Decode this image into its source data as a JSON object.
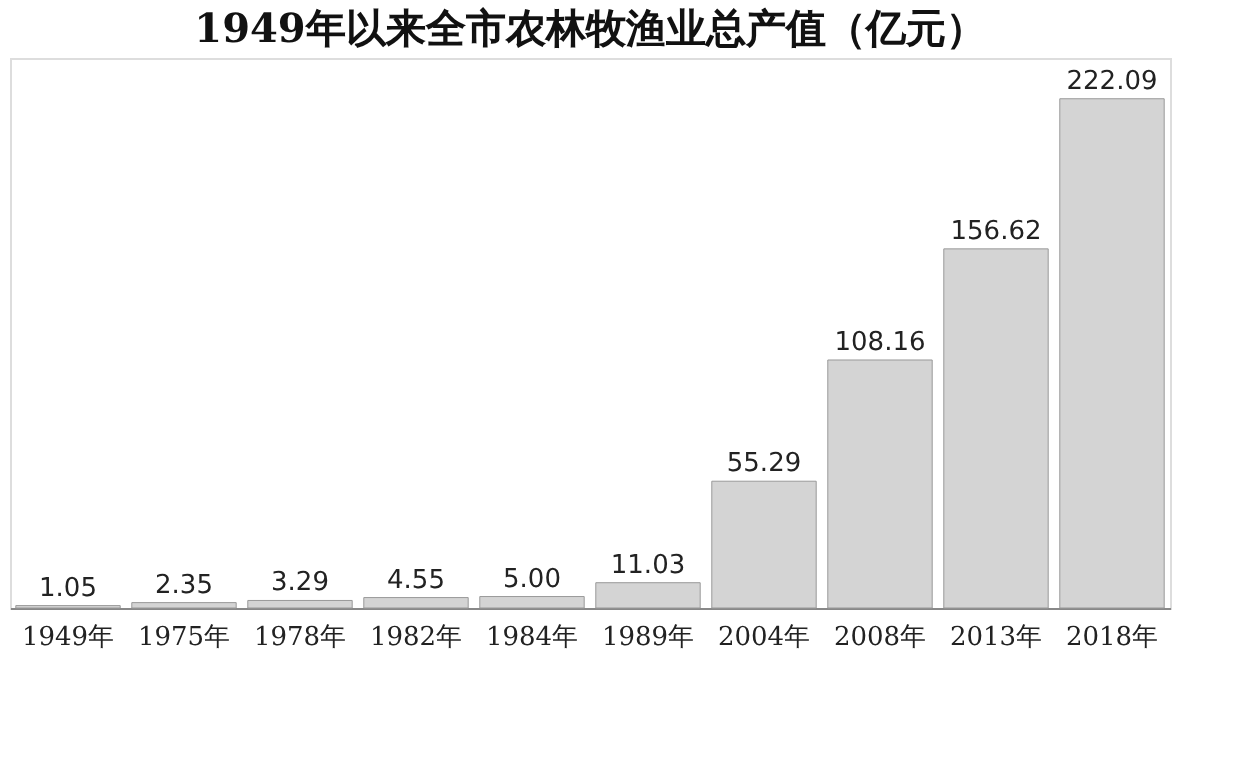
{
  "chart_data": {
    "type": "bar",
    "title": "1949年以来全市农林牧渔业总产值（亿元）",
    "categories": [
      "1949年",
      "1975年",
      "1978年",
      "1982年",
      "1984年",
      "1989年",
      "2004年",
      "2008年",
      "2013年",
      "2018年"
    ],
    "values": [
      1.05,
      2.35,
      3.29,
      4.55,
      5.0,
      11.03,
      55.29,
      108.16,
      156.62,
      222.09
    ],
    "value_labels": [
      "1.05",
      "2.35",
      "3.29",
      "4.55",
      "5.00",
      "11.03",
      "55.29",
      "108.16",
      "156.62",
      "222.09"
    ],
    "color": "#d4d4d4"
  }
}
